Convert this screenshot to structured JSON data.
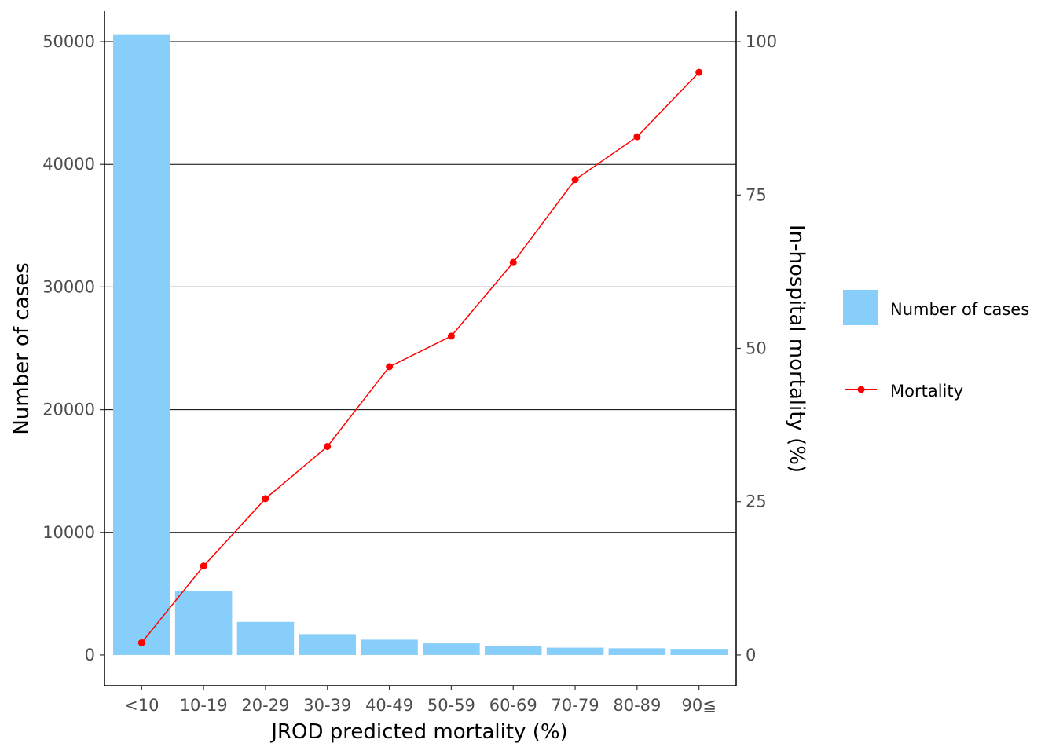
{
  "chart_data": {
    "type": "bar+line",
    "categories": [
      "<10",
      "10-19",
      "20-29",
      "30-39",
      "40-49",
      "50-59",
      "60-69",
      "70-79",
      "80-89",
      "90≦"
    ],
    "series": [
      {
        "name": "Number of cases",
        "type": "bar",
        "axis": "left",
        "color": "#87CEFA",
        "values": [
          50600,
          5200,
          2700,
          1700,
          1250,
          950,
          700,
          600,
          550,
          500
        ]
      },
      {
        "name": "Mortality",
        "type": "line",
        "axis": "right",
        "color": "#FF0000",
        "values": [
          2,
          14.5,
          25.5,
          34,
          47,
          52,
          64,
          77.5,
          84.5,
          95
        ]
      }
    ],
    "xlabel": "JROD predicted mortality (%)",
    "ylabel": "Number of cases",
    "y2label": "In-hospital mortality (%)",
    "ylim": [
      -2500,
      52500
    ],
    "y2lim": [
      -5,
      105
    ],
    "yticks": [
      0,
      10000,
      20000,
      30000,
      40000,
      50000
    ],
    "y2ticks": [
      0,
      25,
      50,
      75,
      100
    ],
    "grid": true,
    "legend_position": "right"
  }
}
